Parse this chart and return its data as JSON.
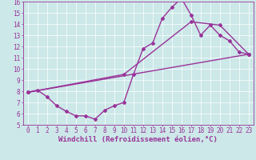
{
  "xlabel": "Windchill (Refroidissement éolien,°C)",
  "ylabel": "",
  "xlim": [
    -0.5,
    23.5
  ],
  "ylim": [
    5,
    16
  ],
  "xticks": [
    0,
    1,
    2,
    3,
    4,
    5,
    6,
    7,
    8,
    9,
    10,
    11,
    12,
    13,
    14,
    15,
    16,
    17,
    18,
    19,
    20,
    21,
    22,
    23
  ],
  "yticks": [
    5,
    6,
    7,
    8,
    9,
    10,
    11,
    12,
    13,
    14,
    15,
    16
  ],
  "bg_color": "#cce8e8",
  "line_color": "#993399",
  "line1_x": [
    0,
    1,
    2,
    3,
    4,
    5,
    6,
    7,
    8,
    9,
    10,
    11,
    12,
    13,
    14,
    15,
    16,
    17,
    18,
    19,
    20,
    21,
    22,
    23
  ],
  "line1_y": [
    7.9,
    8.1,
    7.5,
    6.7,
    6.2,
    5.8,
    5.8,
    5.5,
    6.3,
    6.7,
    7.0,
    9.5,
    11.8,
    12.3,
    14.5,
    15.5,
    16.3,
    14.8,
    13.0,
    13.9,
    13.0,
    12.5,
    11.5,
    11.3
  ],
  "line2_x": [
    0,
    10,
    17,
    20,
    23
  ],
  "line2_y": [
    7.9,
    9.5,
    14.2,
    13.9,
    11.3
  ],
  "line3_x": [
    0,
    23
  ],
  "line3_y": [
    7.9,
    11.3
  ],
  "marker": "D",
  "markersize": 2,
  "linewidth": 1.0,
  "tick_fontsize": 5.5,
  "xlabel_fontsize": 6.5
}
